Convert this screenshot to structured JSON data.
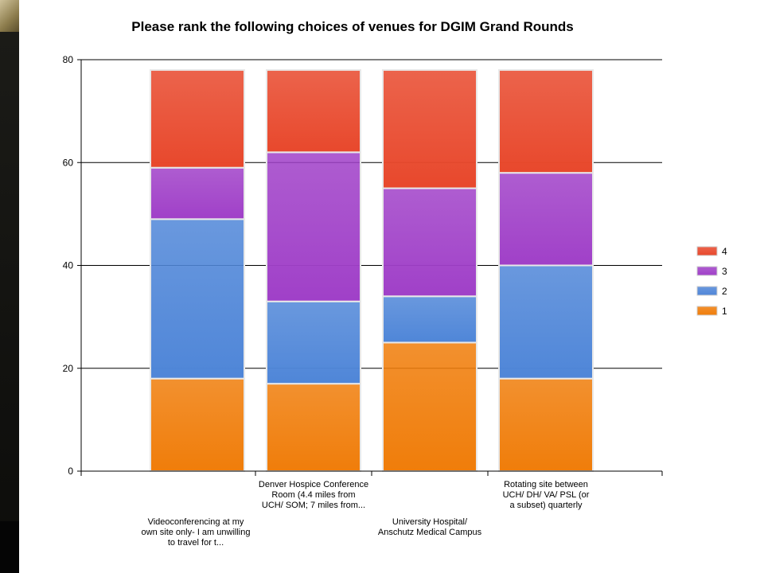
{
  "colors": {
    "4": "#e8482c",
    "3": "#a040c8",
    "2": "#4f86d8",
    "1": "#f07d0a"
  },
  "chart_data": {
    "type": "bar",
    "stacked": true,
    "title": "Please rank the following choices of venues for DGIM Grand Rounds",
    "xlabel": "",
    "ylabel": "",
    "ylim": [
      0,
      80
    ],
    "yticks": [
      0,
      20,
      40,
      60,
      80
    ],
    "grid": true,
    "legend_position": "right",
    "categories": [
      [
        "Videoconferencing at my",
        "own site only- I am unwilling",
        "to travel for t..."
      ],
      [
        "Denver Hospice Conference",
        "Room (4.4 miles from",
        "UCH/ SOM; 7 miles from..."
      ],
      [
        "University Hospital/",
        "Anschutz Medical Campus"
      ],
      [
        "Rotating site between",
        "UCH/ DH/ VA/ PSL (or",
        "a subset) quarterly"
      ]
    ],
    "series": [
      {
        "name": "1",
        "values": [
          18,
          17,
          25,
          18
        ]
      },
      {
        "name": "2",
        "values": [
          31,
          16,
          9,
          22
        ]
      },
      {
        "name": "3",
        "values": [
          10,
          29,
          21,
          18
        ]
      },
      {
        "name": "4",
        "values": [
          19,
          16,
          23,
          20
        ]
      }
    ]
  }
}
